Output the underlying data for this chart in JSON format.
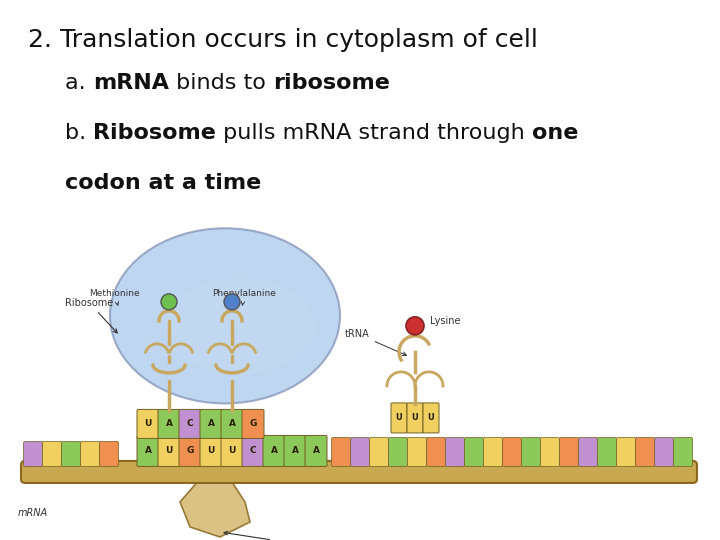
{
  "background_color": "#ffffff",
  "title_line": "2. Translation occurs in cytoplasm of cell",
  "line_a_prefix": "a. ",
  "line_a_bold1": "mRNA",
  "line_a_mid": " binds to ",
  "line_a_bold2": "ribosome",
  "line_b_prefix": "b. ",
  "line_b_bold1": "Ribosome",
  "line_b_mid": " pulls mRNA strand through ",
  "line_b_bold2": "one",
  "line_c_bold": "codon at a time",
  "title_fontsize": 18,
  "text_fontsize": 16,
  "font_family": "DejaVu Sans",
  "text_color": "#111111",
  "base_colors": {
    "A": "#8dc85a",
    "U": "#f0d060",
    "G": "#f09050",
    "C": "#c090d0"
  },
  "mrna_color": "#c8a850",
  "mrna_edge": "#8a6820",
  "ribosome_color": "#b0ccee",
  "ribosome_edge": "#8898bb",
  "trna_color": "#c8a860",
  "methionine_color": "#70c050",
  "phenylalanine_color": "#5080cc",
  "lysine_color": "#cc3030",
  "annotation_color": "#333333"
}
